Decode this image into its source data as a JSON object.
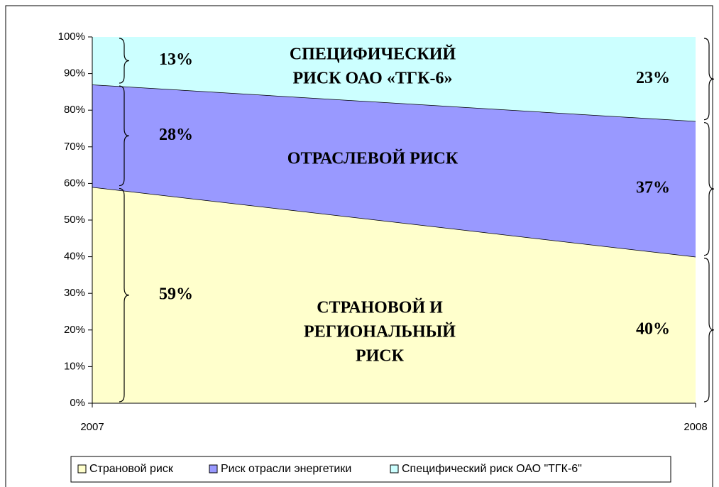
{
  "chart_data": {
    "type": "stacked_area",
    "x": [
      2007,
      2008
    ],
    "xlim": [
      2007,
      2008
    ],
    "xticks": [
      2007,
      2008
    ],
    "ylim": [
      0,
      100
    ],
    "yticks": [
      {
        "value": 0,
        "label": "0%"
      },
      {
        "value": 10,
        "label": "10%"
      },
      {
        "value": 20,
        "label": "20%"
      },
      {
        "value": 30,
        "label": "30%"
      },
      {
        "value": 40,
        "label": "40%"
      },
      {
        "value": 50,
        "label": "50%"
      },
      {
        "value": 60,
        "label": "60%"
      },
      {
        "value": 70,
        "label": "70%"
      },
      {
        "value": 80,
        "label": "80%"
      },
      {
        "value": 90,
        "label": "90%"
      },
      {
        "value": 100,
        "label": "100%"
      }
    ],
    "series": [
      {
        "name": "Страновой риск",
        "color": "#ffffcc",
        "values": [
          59,
          40
        ],
        "value_labels": [
          "59%",
          "40%"
        ]
      },
      {
        "name": "Риск отрасли энергетики",
        "color": "#9999ff",
        "values": [
          28,
          37
        ],
        "value_labels": [
          "28%",
          "37%"
        ]
      },
      {
        "name": "Специфический риск ОАО \"ТГК-6\"",
        "color": "#ccffff",
        "values": [
          13,
          23
        ],
        "value_labels": [
          "13%",
          "23%"
        ]
      }
    ],
    "annotations": [
      {
        "lines": [
          "СТРАНОВОЙ И",
          "РЕГИОНАЛЬНЫЙ",
          "РИСК"
        ]
      },
      {
        "lines": [
          "ОТРАСЛЕВОЙ РИСК"
        ]
      },
      {
        "lines": [
          "СПЕЦИФИЧЕСКИЙ",
          "РИСК ОАО «ТГК-6»"
        ]
      }
    ],
    "legend": "bottom"
  }
}
